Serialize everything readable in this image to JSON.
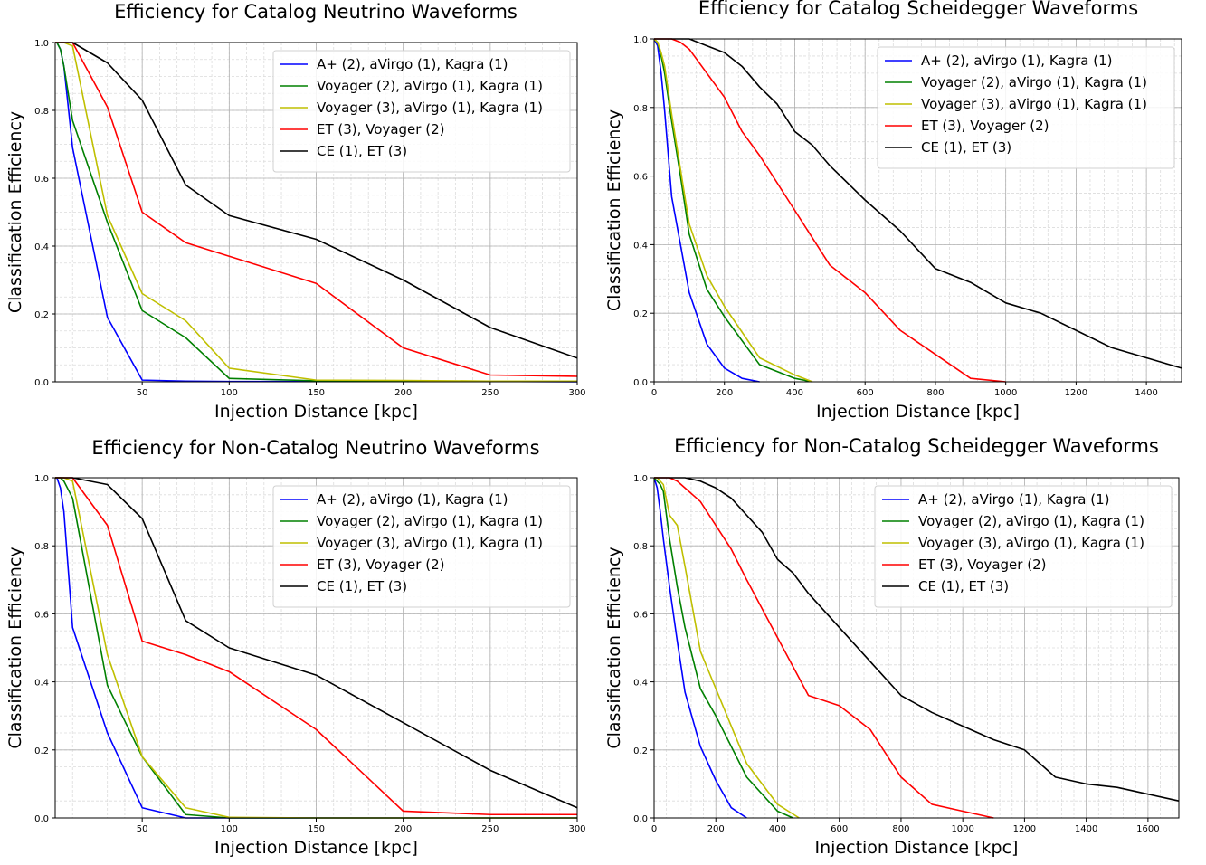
{
  "chart_data": [
    {
      "type": "line",
      "title": "Efficiency for Catalog Neutrino Waveforms",
      "xlabel": "Injection Distance [kpc]",
      "ylabel": "Classification Efficiency",
      "xlim": [
        0,
        300
      ],
      "ylim": [
        0,
        1.0
      ],
      "xticks": [
        50,
        100,
        150,
        200,
        250,
        300
      ],
      "xtick_labels": [
        "50",
        "100",
        "150",
        "200",
        "250",
        "300"
      ],
      "yticks": [
        0,
        0.2,
        0.4,
        0.6,
        0.8,
        1.0
      ],
      "ytick_labels": [
        "0.0",
        "0.2",
        "0.4",
        "0.6",
        "0.8",
        "1.0"
      ],
      "grid": true,
      "legend_position": "top-right",
      "series": [
        {
          "name": "A+ (2), aVirgo (1), Kagra (1)",
          "color": "#0000ff",
          "x": [
            0,
            1,
            3,
            5,
            10,
            30,
            50,
            75,
            100,
            150,
            200,
            250,
            300
          ],
          "y": [
            1.0,
            1.0,
            0.98,
            0.93,
            0.69,
            0.19,
            0.005,
            0.002,
            0.001,
            0.001,
            0.001,
            0.001,
            0.0
          ]
        },
        {
          "name": "Voyager (2), aVirgo (1), Kagra (1)",
          "color": "#008000",
          "x": [
            0,
            1,
            3,
            5,
            10,
            30,
            50,
            75,
            100,
            150,
            200,
            250,
            300
          ],
          "y": [
            1.0,
            1.0,
            0.98,
            0.93,
            0.77,
            0.47,
            0.21,
            0.13,
            0.01,
            0.003,
            0.002,
            0.001,
            0.001
          ]
        },
        {
          "name": "Voyager (3), aVirgo (1), Kagra (1)",
          "color": "#bfbf00",
          "x": [
            0,
            1,
            3,
            5,
            10,
            30,
            50,
            75,
            100,
            150,
            200,
            250,
            300
          ],
          "y": [
            1.0,
            1.0,
            1.0,
            1.0,
            0.99,
            0.49,
            0.26,
            0.18,
            0.04,
            0.005,
            0.004,
            0.002,
            0.002
          ]
        },
        {
          "name": "ET (3), Voyager (2)",
          "color": "#ff0000",
          "x": [
            0,
            1,
            3,
            5,
            10,
            30,
            50,
            75,
            100,
            150,
            200,
            250,
            300
          ],
          "y": [
            1.0,
            1.0,
            1.0,
            1.0,
            1.0,
            0.81,
            0.5,
            0.41,
            0.37,
            0.29,
            0.1,
            0.02,
            0.016
          ]
        },
        {
          "name": "CE (1), ET (3)",
          "color": "#000000",
          "x": [
            0,
            1,
            3,
            5,
            10,
            30,
            50,
            75,
            100,
            150,
            200,
            250,
            300
          ],
          "y": [
            1.0,
            1.0,
            1.0,
            1.0,
            1.0,
            0.94,
            0.83,
            0.58,
            0.49,
            0.42,
            0.3,
            0.16,
            0.07
          ]
        }
      ]
    },
    {
      "type": "line",
      "title": "Efficiency for Catalog Scheidegger Waveforms",
      "xlabel": "Injection Distance [kpc]",
      "ylabel": "Classification Efficiency",
      "xlim": [
        0,
        1500
      ],
      "ylim": [
        0,
        1.0
      ],
      "xticks": [
        0,
        200,
        400,
        600,
        800,
        1000,
        1200,
        1400
      ],
      "xtick_labels": [
        "0",
        "200",
        "400",
        "600",
        "800",
        "1000",
        "1200",
        "1400"
      ],
      "yticks": [
        0,
        0.2,
        0.4,
        0.6,
        0.8,
        1.0
      ],
      "ytick_labels": [
        "0.0",
        "0.2",
        "0.4",
        "0.6",
        "0.8",
        "1.0"
      ],
      "grid": true,
      "legend_position": "top-right",
      "series": [
        {
          "name": "A+ (2), aVirgo (1), Kagra (1)",
          "color": "#0000ff",
          "x": [
            0,
            10,
            20,
            30,
            50,
            75,
            100,
            150,
            200,
            250,
            300
          ],
          "y": [
            1.0,
            0.98,
            0.9,
            0.79,
            0.54,
            0.4,
            0.26,
            0.11,
            0.04,
            0.01,
            0.0
          ]
        },
        {
          "name": "Voyager (2), aVirgo (1), Kagra (1)",
          "color": "#008000",
          "x": [
            0,
            10,
            20,
            30,
            50,
            75,
            100,
            150,
            200,
            300,
            400,
            450
          ],
          "y": [
            1.0,
            0.99,
            0.95,
            0.9,
            0.76,
            0.6,
            0.43,
            0.27,
            0.19,
            0.05,
            0.01,
            0.0
          ]
        },
        {
          "name": "Voyager (3), aVirgo (1), Kagra (1)",
          "color": "#bfbf00",
          "x": [
            0,
            10,
            20,
            30,
            50,
            75,
            100,
            150,
            200,
            300,
            400,
            450
          ],
          "y": [
            1.0,
            0.99,
            0.96,
            0.92,
            0.78,
            0.62,
            0.46,
            0.31,
            0.22,
            0.07,
            0.02,
            0.0
          ]
        },
        {
          "name": "ET (3), Voyager (2)",
          "color": "#ff0000",
          "x": [
            0,
            25,
            50,
            75,
            100,
            200,
            250,
            300,
            400,
            500,
            600,
            700,
            800,
            900,
            1000
          ],
          "y": [
            1.0,
            1.0,
            1.0,
            0.99,
            0.97,
            0.83,
            0.73,
            0.66,
            0.5,
            0.34,
            0.26,
            0.15,
            0.08,
            0.01,
            0.0
          ]
        },
        {
          "name": "CE (1), ET (3)",
          "color": "#000000",
          "x": [
            0,
            50,
            100,
            150,
            200,
            250,
            300,
            350,
            400,
            450,
            500,
            600,
            700,
            800,
            900,
            1000,
            1100,
            1200,
            1300,
            1400,
            1500
          ],
          "y": [
            1.0,
            1.0,
            1.0,
            0.98,
            0.96,
            0.92,
            0.86,
            0.81,
            0.73,
            0.69,
            0.63,
            0.53,
            0.44,
            0.33,
            0.29,
            0.23,
            0.2,
            0.15,
            0.1,
            0.07,
            0.04
          ]
        }
      ]
    },
    {
      "type": "line",
      "title": "Efficiency for Non-Catalog Neutrino Waveforms",
      "xlabel": "Injection Distance [kpc]",
      "ylabel": "Classification Efficiency",
      "xlim": [
        0,
        300
      ],
      "ylim": [
        0,
        1.0
      ],
      "xticks": [
        50,
        100,
        150,
        200,
        250,
        300
      ],
      "xtick_labels": [
        "50",
        "100",
        "150",
        "200",
        "250",
        "300"
      ],
      "yticks": [
        0,
        0.2,
        0.4,
        0.6,
        0.8,
        1.0
      ],
      "ytick_labels": [
        "0.0",
        "0.2",
        "0.4",
        "0.6",
        "0.8",
        "1.0"
      ],
      "grid": true,
      "legend_position": "top-right",
      "series": [
        {
          "name": "A+ (2), aVirgo (1), Kagra (1)",
          "color": "#0000ff",
          "x": [
            0,
            1,
            3,
            5,
            10,
            30,
            50,
            75,
            100,
            150,
            200,
            250,
            300
          ],
          "y": [
            1.0,
            1.0,
            0.97,
            0.9,
            0.56,
            0.25,
            0.03,
            0.0,
            0.0,
            0.0,
            0.0,
            0.0,
            0.0
          ]
        },
        {
          "name": "Voyager (2), aVirgo (1), Kagra (1)",
          "color": "#008000",
          "x": [
            0,
            1,
            3,
            5,
            10,
            30,
            50,
            75,
            100,
            150,
            200,
            250,
            300
          ],
          "y": [
            1.0,
            1.0,
            1.0,
            0.99,
            0.94,
            0.39,
            0.18,
            0.01,
            0.0,
            0.0,
            0.0,
            0.0,
            0.0
          ]
        },
        {
          "name": "Voyager (3), aVirgo (1), Kagra (1)",
          "color": "#bfbf00",
          "x": [
            0,
            1,
            3,
            5,
            10,
            30,
            50,
            75,
            100,
            150,
            200,
            250,
            300
          ],
          "y": [
            1.0,
            1.0,
            1.0,
            1.0,
            0.99,
            0.48,
            0.18,
            0.03,
            0.002,
            0.0,
            0.0,
            0.0,
            0.0
          ]
        },
        {
          "name": "ET (3), Voyager (2)",
          "color": "#ff0000",
          "x": [
            0,
            1,
            3,
            5,
            10,
            30,
            50,
            75,
            100,
            150,
            200,
            250,
            300
          ],
          "y": [
            1.0,
            1.0,
            1.0,
            1.0,
            1.0,
            0.86,
            0.52,
            0.48,
            0.43,
            0.26,
            0.02,
            0.01,
            0.01
          ]
        },
        {
          "name": "CE (1), ET (3)",
          "color": "#000000",
          "x": [
            0,
            1,
            3,
            5,
            10,
            30,
            50,
            75,
            100,
            150,
            200,
            250,
            300
          ],
          "y": [
            1.0,
            1.0,
            1.0,
            1.0,
            1.0,
            0.98,
            0.88,
            0.58,
            0.5,
            0.42,
            0.28,
            0.14,
            0.03
          ]
        }
      ]
    },
    {
      "type": "line",
      "title": "Efficiency for Non-Catalog Scheidegger Waveforms",
      "xlabel": "Injection Distance [kpc]",
      "ylabel": "Classification Efficiency",
      "xlim": [
        0,
        1700
      ],
      "ylim": [
        0,
        1.0
      ],
      "xticks": [
        0,
        200,
        400,
        600,
        800,
        1000,
        1200,
        1400,
        1600
      ],
      "xtick_labels": [
        "0",
        "200",
        "400",
        "600",
        "800",
        "1000",
        "1200",
        "1400",
        "1600"
      ],
      "yticks": [
        0,
        0.2,
        0.4,
        0.6,
        0.8,
        1.0
      ],
      "ytick_labels": [
        "0.0",
        "0.2",
        "0.4",
        "0.6",
        "0.8",
        "1.0"
      ],
      "grid": true,
      "legend_position": "top-right",
      "series": [
        {
          "name": "A+ (2), aVirgo (1), Kagra (1)",
          "color": "#0000ff",
          "x": [
            0,
            10,
            20,
            30,
            50,
            75,
            100,
            150,
            200,
            250,
            300
          ],
          "y": [
            1.0,
            0.97,
            0.9,
            0.82,
            0.68,
            0.52,
            0.37,
            0.21,
            0.11,
            0.03,
            0.0
          ]
        },
        {
          "name": "Voyager (2), aVirgo (1), Kagra (1)",
          "color": "#008000",
          "x": [
            0,
            10,
            20,
            30,
            50,
            75,
            100,
            150,
            200,
            300,
            400,
            450
          ],
          "y": [
            1.0,
            0.99,
            0.98,
            0.96,
            0.82,
            0.68,
            0.56,
            0.38,
            0.3,
            0.12,
            0.02,
            0.0
          ]
        },
        {
          "name": "Voyager (3), aVirgo (1), Kagra (1)",
          "color": "#bfbf00",
          "x": [
            0,
            10,
            20,
            30,
            50,
            75,
            100,
            150,
            200,
            300,
            400,
            470
          ],
          "y": [
            1.0,
            1.0,
            0.99,
            0.98,
            0.89,
            0.86,
            0.74,
            0.49,
            0.38,
            0.16,
            0.04,
            0.0
          ]
        },
        {
          "name": "ET (3), Voyager (2)",
          "color": "#ff0000",
          "x": [
            0,
            25,
            50,
            75,
            100,
            150,
            200,
            250,
            300,
            400,
            500,
            600,
            700,
            800,
            900,
            1000,
            1100
          ],
          "y": [
            1.0,
            1.0,
            1.0,
            0.99,
            0.97,
            0.93,
            0.86,
            0.79,
            0.7,
            0.53,
            0.36,
            0.33,
            0.26,
            0.12,
            0.04,
            0.02,
            0.0
          ]
        },
        {
          "name": "CE (1), ET (3)",
          "color": "#000000",
          "x": [
            0,
            50,
            100,
            150,
            200,
            250,
            300,
            350,
            400,
            450,
            500,
            600,
            700,
            800,
            900,
            1000,
            1100,
            1200,
            1300,
            1400,
            1500,
            1600,
            1700
          ],
          "y": [
            1.0,
            1.0,
            1.0,
            0.99,
            0.97,
            0.94,
            0.89,
            0.84,
            0.76,
            0.72,
            0.66,
            0.56,
            0.46,
            0.36,
            0.31,
            0.27,
            0.23,
            0.2,
            0.12,
            0.1,
            0.09,
            0.07,
            0.05
          ]
        }
      ]
    }
  ]
}
